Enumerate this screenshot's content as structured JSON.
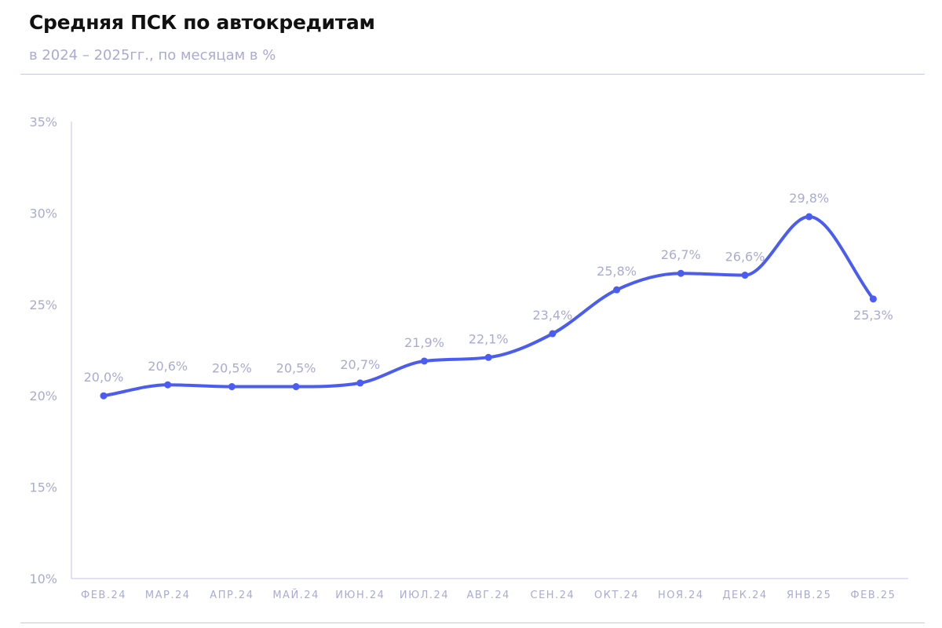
{
  "header": {
    "title": "Средняя ПСК по автокредитам",
    "subtitle": "в 2024 – 2025гг., по месяцам в %"
  },
  "colors": {
    "line": "#4a5cf2",
    "text_muted": "#a9abd6",
    "axis": "#c5c7e6"
  },
  "chart_data": {
    "type": "line",
    "title": "Средняя ПСК по автокредитам",
    "subtitle": "в 2024 – 2025гг., по месяцам в %",
    "categories": [
      "ФЕВ.24",
      "МАР.24",
      "АПР.24",
      "МАЙ.24",
      "ИЮН.24",
      "ИЮЛ.24",
      "АВГ.24",
      "СЕН.24",
      "ОКТ.24",
      "НОЯ.24",
      "ДЕК.24",
      "ЯНВ.25",
      "ФЕВ.25"
    ],
    "series": [
      {
        "values": [
          20.0,
          20.6,
          20.5,
          20.5,
          20.7,
          21.9,
          22.1,
          23.4,
          25.8,
          26.7,
          26.6,
          29.8,
          25.3
        ]
      }
    ],
    "data_labels": [
      "20,0%",
      "20,6%",
      "20,5%",
      "20,5%",
      "20,7%",
      "21,9%",
      "22,1%",
      "23,4%",
      "25,8%",
      "26,7%",
      "26,6%",
      "29,8%",
      "25,3%"
    ],
    "ylim": [
      10,
      35
    ],
    "yticks": [
      35,
      30,
      25,
      20,
      15,
      10
    ],
    "ytick_labels": [
      "35%",
      "30%",
      "25%",
      "20%",
      "15%",
      "10%"
    ],
    "grid": false,
    "legend": "none"
  }
}
